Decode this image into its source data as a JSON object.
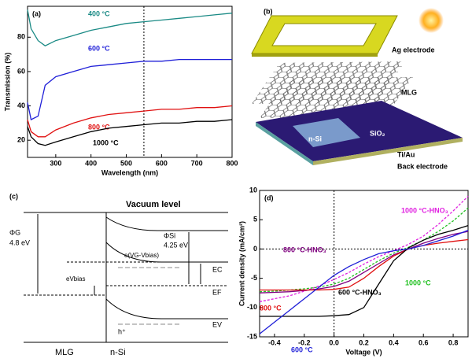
{
  "chart_data": [
    {
      "type": "line",
      "panel": "(a)",
      "x_label": "Wavelength (nm)",
      "y_label": "Transmission (%)",
      "x": [
        220,
        230,
        250,
        270,
        300,
        350,
        400,
        450,
        500,
        550,
        600,
        650,
        700,
        750,
        800
      ],
      "series": [
        {
          "name": "400 °C",
          "color": "#1a8a85",
          "values": [
            96,
            85,
            78,
            75,
            78,
            81,
            84,
            86,
            88,
            89,
            90,
            91,
            92,
            93,
            94
          ]
        },
        {
          "name": "600 °C",
          "color": "#1f1fd8",
          "values": [
            42,
            32,
            34,
            52,
            57,
            60,
            63,
            64,
            65,
            66,
            66,
            67,
            67,
            67,
            67
          ]
        },
        {
          "name": "800 °C",
          "color": "#e01010",
          "values": [
            32,
            25,
            22,
            22,
            26,
            30,
            33,
            35,
            36,
            37,
            38,
            38,
            39,
            39,
            40
          ]
        },
        {
          "name": "1000 °C",
          "color": "#000000",
          "values": [
            28,
            22,
            18,
            17,
            19,
            22,
            25,
            27,
            28,
            29,
            30,
            30,
            31,
            31,
            32
          ]
        }
      ],
      "xlim": [
        220,
        800
      ],
      "xticks": [
        300,
        400,
        500,
        600,
        700,
        800
      ],
      "ylim": [
        10,
        98
      ],
      "yticks": [
        20,
        40,
        60,
        80
      ],
      "vline": 550
    },
    {
      "type": "line",
      "panel": "(d)",
      "x_label": "Voltage (V)",
      "y_label": "Current density (mA/cm²)",
      "x": [
        -0.5,
        -0.4,
        -0.3,
        -0.2,
        -0.1,
        0,
        0.1,
        0.2,
        0.3,
        0.4,
        0.5,
        0.6,
        0.7,
        0.8,
        0.9
      ],
      "series": [
        {
          "name": "1000 °C-HNO₃",
          "color": "#e020e0",
          "style": "dashed",
          "values": [
            -9,
            -8.5,
            -8,
            -7.2,
            -6.3,
            -5.2,
            -4,
            -2.6,
            -1.3,
            -0.3,
            0.8,
            2.2,
            4.2,
            6.5,
            9
          ]
        },
        {
          "name": "1000 °C",
          "color": "#20c020",
          "style": "dashed",
          "values": [
            -7.3,
            -7.2,
            -7,
            -6.8,
            -6.5,
            -6,
            -5,
            -3.5,
            -2,
            -0.7,
            0.3,
            1.5,
            3,
            4.8,
            7
          ]
        },
        {
          "name": "800 °C-HNO₃",
          "color": "#800080",
          "style": "solid",
          "values": [
            -7.5,
            -7.4,
            -7.3,
            -7.1,
            -6.8,
            -6.4,
            -5.5,
            -4,
            -2.5,
            -1,
            0,
            1,
            1.8,
            2.5,
            3
          ]
        },
        {
          "name": "800 °C",
          "color": "#e01010",
          "style": "solid",
          "values": [
            -7,
            -7,
            -7,
            -7,
            -7,
            -6.9,
            -6.5,
            -5,
            -3,
            -1.2,
            0,
            0.6,
            1,
            1.3,
            1.6
          ]
        },
        {
          "name": "600 °C-HNO₃",
          "color": "#000000",
          "style": "solid",
          "values": [
            -11.5,
            -11.5,
            -11.5,
            -11.5,
            -11.5,
            -11.4,
            -11.2,
            -10,
            -6,
            -2,
            0.2,
            1.5,
            2.5,
            3.2,
            4
          ]
        },
        {
          "name": "600 °C",
          "color": "#1f1fd8",
          "style": "solid",
          "values": [
            -14.5,
            -12.5,
            -10.5,
            -8.5,
            -6.5,
            -4.5,
            -3,
            -1.8,
            -0.8,
            -0.3,
            0,
            0.6,
            1.4,
            2.2,
            3.2
          ]
        }
      ],
      "xlim": [
        -0.5,
        0.9
      ],
      "xticks": [
        -0.4,
        -0.2,
        {
          "value": 0,
          "label": "0.0"
        },
        0.2,
        0.4,
        0.6,
        0.8
      ],
      "ylim": [
        -15,
        10
      ],
      "yticks": [
        -15,
        -10,
        -5,
        0,
        5,
        10
      ],
      "vline": 0,
      "hline": 0
    }
  ],
  "diagram_b": {
    "panel": "(b)",
    "ag": "Ag electrode",
    "mlg": "MLG",
    "nsi": "n-Si",
    "sio2": "SiO₂",
    "tiau": "Ti/Au",
    "back": "Back electrode"
  },
  "diagram_c": {
    "panel": "(c)",
    "vacuum": "Vacuum level",
    "phi_g": "ΦG",
    "phi_g_val": "4.8 eV",
    "phi_si": "ΦSi",
    "phi_si_val": "4.25 eV",
    "evg": "e(VG-Vbias)",
    "evbias": "eVbias",
    "ec": "EC",
    "ef": "EF",
    "ev": "EV",
    "hole": "h⁺",
    "mlg": "MLG",
    "nsi": "n-Si"
  }
}
